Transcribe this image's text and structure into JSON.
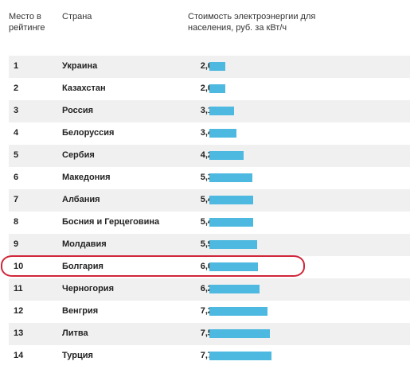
{
  "headers": {
    "rank": "Место в рейтинге",
    "country": "Страна",
    "cost": "Стоимость электроэнергии для населения, руб. за кВт/ч"
  },
  "highlight_rank": "10",
  "chart_data": {
    "type": "bar",
    "orientation": "horizontal",
    "xlabel": "",
    "ylabel": "",
    "xlim": [
      0,
      7.7
    ],
    "rows": [
      {
        "rank": "1",
        "country": "Украина",
        "value_label": "2,0",
        "value": 2.0
      },
      {
        "rank": "2",
        "country": "Казахстан",
        "value_label": "2,0",
        "value": 2.0
      },
      {
        "rank": "3",
        "country": "Россия",
        "value_label": "3,1",
        "value": 3.1
      },
      {
        "rank": "4",
        "country": "Белоруссия",
        "value_label": "3,4",
        "value": 3.4
      },
      {
        "rank": "5",
        "country": "Сербия",
        "value_label": "4,2",
        "value": 4.2
      },
      {
        "rank": "6",
        "country": "Македония",
        "value_label": "5,3",
        "value": 5.3
      },
      {
        "rank": "7",
        "country": "Албания",
        "value_label": "5,4",
        "value": 5.4
      },
      {
        "rank": "8",
        "country": "Босния и Герцеговина",
        "value_label": "5,4",
        "value": 5.4
      },
      {
        "rank": "9",
        "country": "Молдавия",
        "value_label": "5,9",
        "value": 5.9
      },
      {
        "rank": "10",
        "country": "Болгария",
        "value_label": "6,0",
        "value": 6.0
      },
      {
        "rank": "11",
        "country": "Черногория",
        "value_label": "6,2",
        "value": 6.2
      },
      {
        "rank": "12",
        "country": "Венгрия",
        "value_label": "7,2",
        "value": 7.2
      },
      {
        "rank": "13",
        "country": "Литва",
        "value_label": "7,5",
        "value": 7.5
      },
      {
        "rank": "14",
        "country": "Турция",
        "value_label": "7,7",
        "value": 7.7
      }
    ],
    "bar_color": "#4db9e0",
    "highlight_color": "#d0273a"
  }
}
